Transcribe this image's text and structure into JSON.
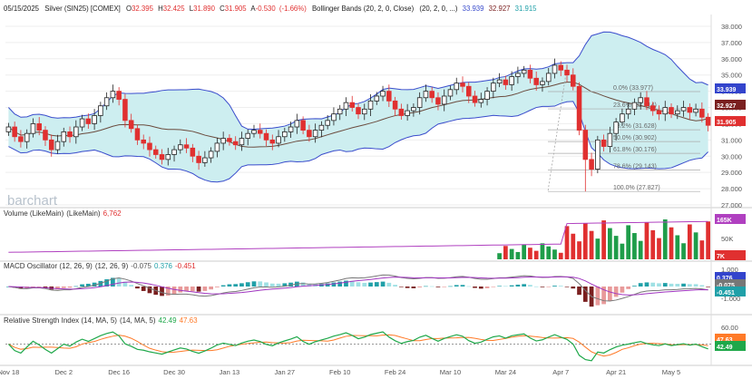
{
  "header": {
    "date": "05/15/2025",
    "symbol": "Silver (SIN25) [COMEX]",
    "open_label": "O",
    "open": "32.395",
    "high_label": "H",
    "high": "32.425",
    "low_label": "L",
    "low": "31.890",
    "close_label": "C",
    "close": "31.905",
    "change_label": "A",
    "change": "-0.530",
    "change_pct": "(-1.66%)",
    "indicator": "Bollinger Bands (20, 2, 0, Close)",
    "indicator_params": "(20, 2, 0, ...)",
    "bb_upper": "33.939",
    "bb_mid": "32.927",
    "bb_lower": "31.915"
  },
  "watermark": "barchart",
  "colors": {
    "up": "#1f9d4a",
    "down": "#e03030",
    "bb_fill": "#cdeef0",
    "bb_line": "#3a4ccc",
    "bb_mid": "#6b4b3e",
    "volume_ma": "#b040c0",
    "macd": "#777777",
    "signal": "#a035c0",
    "rsi": "#1fa84a",
    "rsi_ma": "#ff7a28",
    "badge_blue": "#3344cc",
    "badge_maroon": "#7a1f1f",
    "badge_red": "#e03030",
    "badge_teal": "#20a0a8"
  },
  "price_axis": [
    "38.000",
    "37.000",
    "36.000",
    "35.000",
    "34.000",
    "33.000",
    "32.000",
    "31.000",
    "30.000",
    "29.000",
    "28.000",
    "27.000"
  ],
  "price_badges": [
    "33.939",
    "32.927",
    "31.905"
  ],
  "fibonacci": [
    "0.0% (33.977)",
    "23.6% (32.914)",
    "38.2% (31.628)",
    "50.0% (30.902)",
    "61.8% (30.176)",
    "78.6% (29.143)",
    "100.0% (27.827)"
  ],
  "volume": {
    "title": "Volume (LikeMain)",
    "params": "(LikeMain)",
    "value": "6,762",
    "axis": [
      "50K"
    ],
    "badges": [
      "165K",
      "7K"
    ]
  },
  "macd": {
    "title": "MACD Oscillator (12, 26, 9)",
    "params": "(12, 26, 9)",
    "v1": "-0.075",
    "v2": "0.376",
    "v3": "-0.451",
    "axis": [
      "1.000",
      "-1.000"
    ],
    "badges": [
      "0.376",
      "-0.075",
      "-0.451"
    ]
  },
  "rsi": {
    "title": "Relative Strength Index (14, MA, 5)",
    "params": "(14, MA, 5)",
    "v1": "42.49",
    "v2": "47.63",
    "axis": [
      "60.00"
    ],
    "badges": [
      "47.63",
      "42.49"
    ]
  },
  "x_axis": [
    "Nov 18",
    "Dec 2",
    "Dec 16",
    "Dec 30",
    "Jan 13",
    "Jan 27",
    "Feb 10",
    "Feb 24",
    "Mar 10",
    "Mar 24",
    "Apr 7",
    "Apr 21",
    "May 5"
  ],
  "chart_data": {
    "type": "candlestick",
    "title": "Silver (SIN25) [COMEX]",
    "ylabel": "",
    "ylim": [
      27,
      38.5
    ],
    "grid": true,
    "series": [
      {
        "name": "Silver (SIN25)",
        "close": [
          31.8,
          31.2,
          30.9,
          31.4,
          32.0,
          31.6,
          31.0,
          30.4,
          30.9,
          31.5,
          31.2,
          31.8,
          32.3,
          32.0,
          32.5,
          33.1,
          33.6,
          34.0,
          33.5,
          32.2,
          31.7,
          31.0,
          30.8,
          30.4,
          30.1,
          29.8,
          30.1,
          30.4,
          30.7,
          30.5,
          30.0,
          29.6,
          29.9,
          30.3,
          30.8,
          31.1,
          30.9,
          30.7,
          31.1,
          31.4,
          31.6,
          31.4,
          31.0,
          30.8,
          31.2,
          31.5,
          31.8,
          32.2,
          31.6,
          31.2,
          31.6,
          31.9,
          32.2,
          32.6,
          32.9,
          33.3,
          33.0,
          32.6,
          32.9,
          33.4,
          33.7,
          34.0,
          33.4,
          32.9,
          32.5,
          32.8,
          33.0,
          33.6,
          34.0,
          33.6,
          33.2,
          33.7,
          34.1,
          34.5,
          34.3,
          33.7,
          33.3,
          33.5,
          34.0,
          34.5,
          34.7,
          34.4,
          34.9,
          35.1,
          35.3,
          34.8,
          34.4,
          34.6,
          35.1,
          35.6,
          35.3,
          35.0,
          34.3,
          31.6,
          29.8,
          29.2,
          31.0,
          30.6,
          31.4,
          32.1,
          32.6,
          32.9,
          33.3,
          33.6,
          33.1,
          32.8,
          32.6,
          33.0,
          32.6,
          32.8,
          33.0,
          32.7,
          32.9,
          32.4,
          31.9
        ]
      },
      {
        "name": "Bollinger Upper",
        "values": []
      },
      {
        "name": "Bollinger Mid",
        "values": []
      },
      {
        "name": "Bollinger Lower",
        "values": []
      }
    ]
  }
}
